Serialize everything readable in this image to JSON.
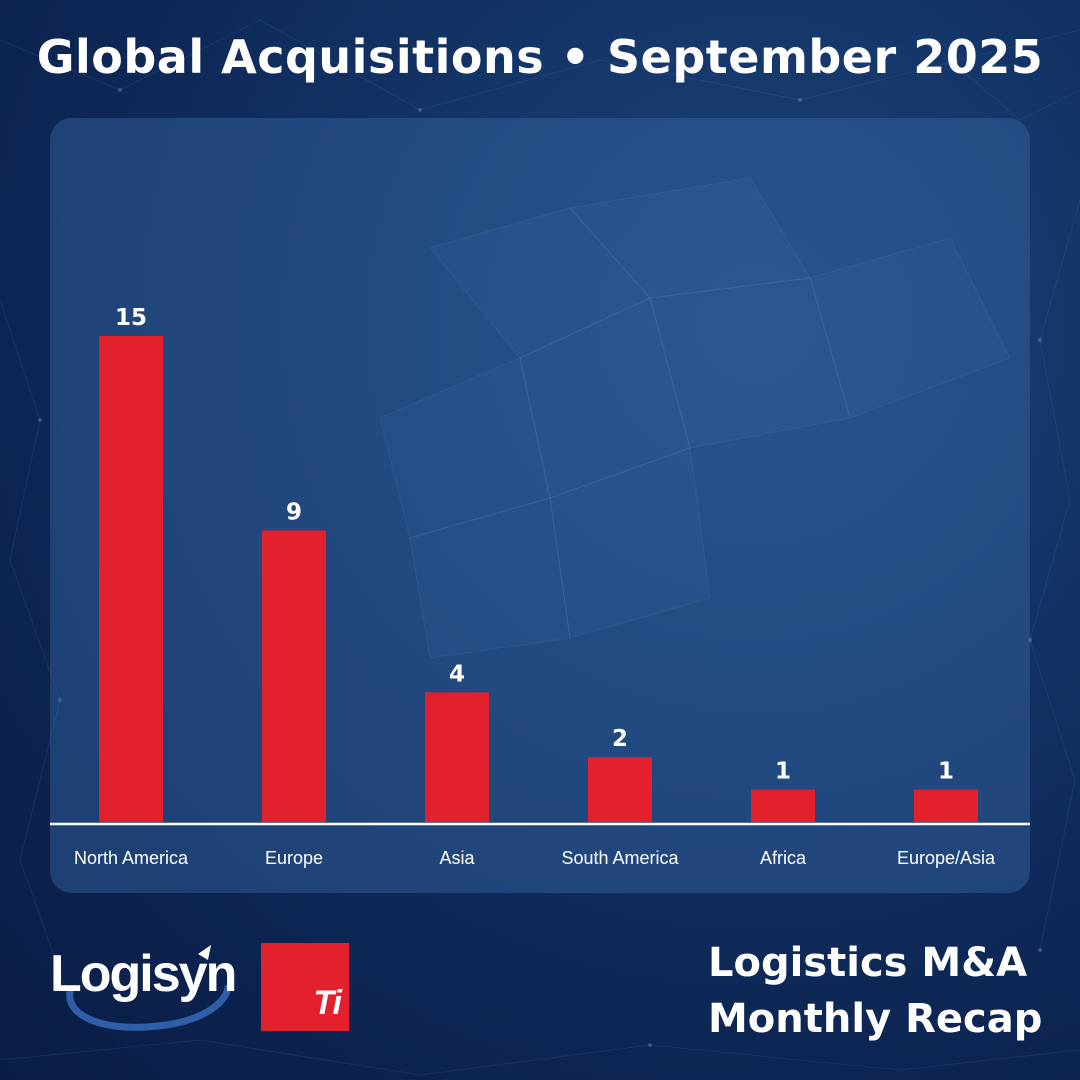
{
  "title": "Global Acquisitions • September 2025",
  "chart_data": {
    "type": "bar",
    "categories": [
      "North America",
      "Europe",
      "Asia",
      "South America",
      "Africa",
      "Europe/Asia"
    ],
    "values": [
      15,
      9,
      4,
      2,
      1,
      1
    ],
    "ylim": [
      0,
      17
    ],
    "grid": false,
    "bar_color": "#e3212d",
    "axis_color": "#ffffff",
    "data_labels": true
  },
  "footer": {
    "brand_logisyn": "Logisyn",
    "brand_ti": "Ti",
    "recap_line1": "Logistics M&A",
    "recap_line2": "Monthly Recap"
  },
  "colors": {
    "background": "#0d2552",
    "panel": "#3a6caa",
    "accent_red": "#e3212d"
  }
}
